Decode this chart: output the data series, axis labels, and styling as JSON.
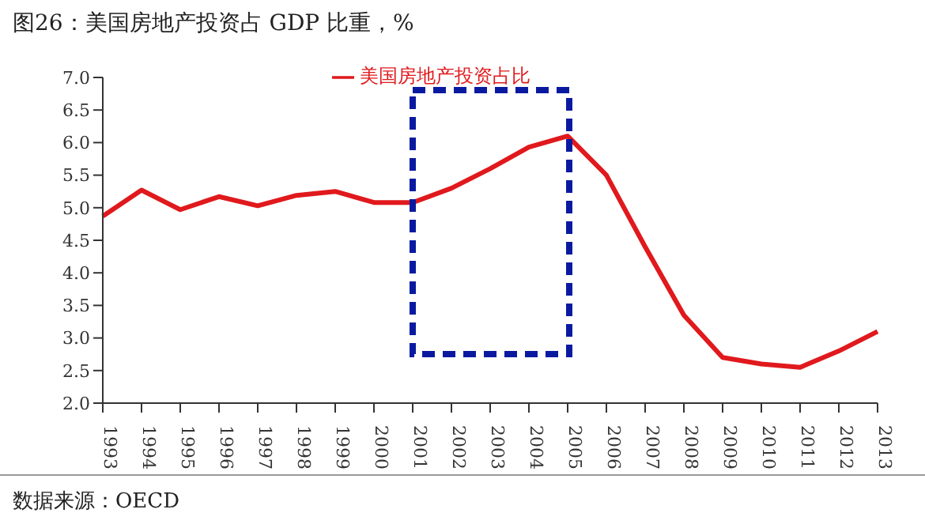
{
  "chart_data": {
    "type": "line",
    "title": "图26：美国房地产投资占 GDP 比重，%",
    "categories": [
      "1993",
      "1994",
      "1995",
      "1996",
      "1997",
      "1998",
      "1999",
      "2000",
      "2001",
      "2002",
      "2003",
      "2004",
      "2005",
      "2006",
      "2007",
      "2008",
      "2009",
      "2010",
      "2011",
      "2012",
      "2013"
    ],
    "series": [
      {
        "name": "美国房地产投资占比",
        "color": "#e0191d",
        "values": [
          4.87,
          5.27,
          4.97,
          5.17,
          5.03,
          5.19,
          5.25,
          5.08,
          5.08,
          5.3,
          5.6,
          5.93,
          6.1,
          5.5,
          4.4,
          3.35,
          2.7,
          2.6,
          2.55,
          2.8,
          3.1
        ]
      }
    ],
    "ylim": [
      2.0,
      7.0
    ],
    "yticks": [
      {
        "value": 2,
        "label": "2.0"
      },
      2.5,
      {
        "value": 3,
        "label": "3.0"
      },
      3.5,
      {
        "value": 4,
        "label": "4.0"
      },
      4.5,
      {
        "value": 5,
        "label": "5.0"
      },
      5.5,
      {
        "value": 6,
        "label": "6.0"
      },
      6.5,
      {
        "value": 7,
        "label": "7.0"
      }
    ],
    "grid": false,
    "legend": "top",
    "marker": "none",
    "line_style": "solid",
    "annotations": [
      "数据来源：OECD"
    ]
  }
}
